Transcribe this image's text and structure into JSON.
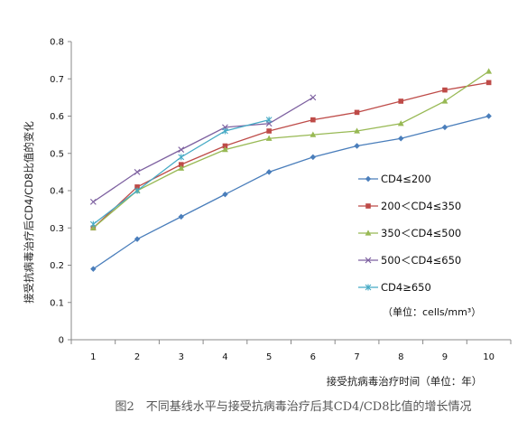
{
  "chart_data": {
    "type": "line",
    "title": "",
    "xlabel": "接受抗病毒治疗时间（单位：年）",
    "ylabel": "接受抗病毒治疗后CD4/CD8比值的变化",
    "x": [
      1,
      2,
      3,
      4,
      5,
      6,
      7,
      8,
      9,
      10
    ],
    "xlim": [
      0.5,
      10.5
    ],
    "ylim": [
      0,
      0.8
    ],
    "yticks": [
      "0",
      "0.1",
      "0.2",
      "0.3",
      "0.4",
      "0.5",
      "0.6",
      "0.7",
      "0.8"
    ],
    "xticks": [
      "1",
      "2",
      "3",
      "4",
      "5",
      "6",
      "7",
      "8",
      "9",
      "10"
    ],
    "grid": false,
    "legend_position": "right",
    "unit_note": "（单位：cells/mm³）",
    "caption": "图2　不同基线水平与接受抗病毒治疗后其CD4/CD8比值的增长情况",
    "series": [
      {
        "name": "CD4≤200",
        "color": "#4a7ebb",
        "marker": "diamond",
        "values": [
          0.19,
          0.27,
          0.33,
          0.39,
          0.45,
          0.49,
          0.52,
          0.54,
          0.57,
          0.6
        ]
      },
      {
        "name": "200＜CD4≤350",
        "color": "#be4b48",
        "marker": "square",
        "values": [
          0.3,
          0.41,
          0.47,
          0.52,
          0.56,
          0.59,
          0.61,
          0.64,
          0.67,
          0.69
        ]
      },
      {
        "name": "350＜CD4≤500",
        "color": "#98b954",
        "marker": "triangle",
        "values": [
          0.3,
          0.4,
          0.46,
          0.51,
          0.54,
          0.55,
          0.56,
          0.58,
          0.64,
          0.72
        ]
      },
      {
        "name": "500＜CD4≤650",
        "color": "#7d60a0",
        "marker": "x",
        "values": [
          0.37,
          0.45,
          0.51,
          0.57,
          0.58,
          0.65,
          null,
          null,
          null,
          null
        ]
      },
      {
        "name": "CD4≥650",
        "color": "#46aac5",
        "marker": "star",
        "values": [
          0.31,
          0.4,
          0.49,
          0.56,
          0.59,
          null,
          null,
          null,
          null,
          null
        ]
      }
    ]
  }
}
